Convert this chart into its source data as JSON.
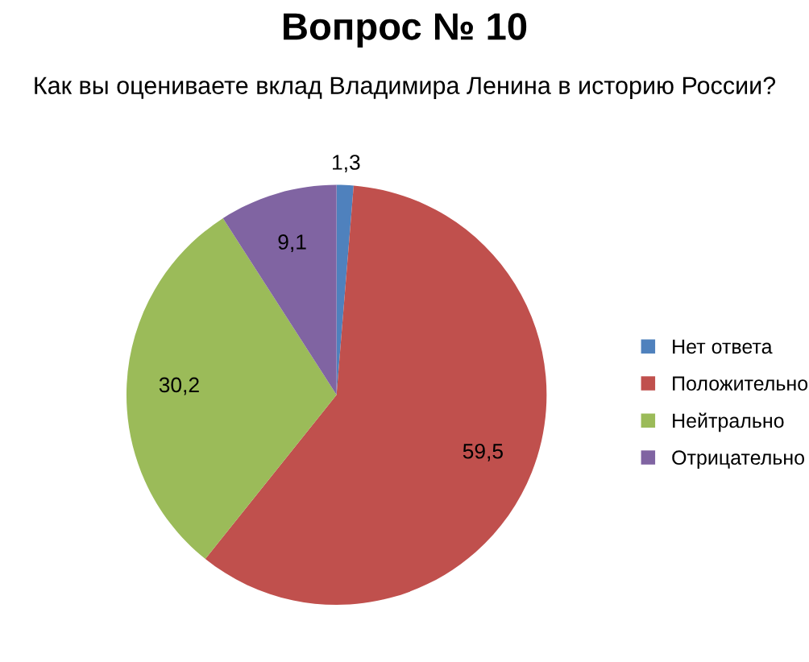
{
  "chart_data": {
    "type": "pie",
    "title": "Вопрос № 10",
    "subtitle": "Как вы оцениваете вклад Владимира Ленина в историю России?",
    "categories": [
      "Нет ответа",
      "Положительно",
      "Нейтрально",
      "Отрицательно"
    ],
    "values": [
      1.3,
      59.5,
      30.2,
      9.1
    ],
    "value_labels": [
      "1,3",
      "59,5",
      "30,2",
      "9,1"
    ],
    "colors": [
      "#4f81bd",
      "#c0504d",
      "#9bbb59",
      "#8064a2"
    ],
    "legend": "right"
  }
}
